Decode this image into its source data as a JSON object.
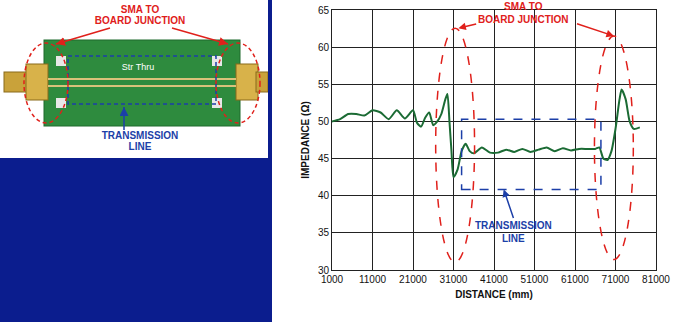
{
  "chart_data": {
    "type": "line",
    "x": [
      1000,
      3000,
      5000,
      7000,
      9000,
      11000,
      13000,
      15000,
      17000,
      19000,
      21000,
      22000,
      23000,
      24000,
      25000,
      26000,
      27000,
      28000,
      29000,
      29500,
      30000,
      30500,
      31000,
      32000,
      33000,
      34000,
      35000,
      36000,
      38000,
      40000,
      42000,
      44000,
      46000,
      48000,
      50000,
      52000,
      54000,
      56000,
      58000,
      60000,
      62000,
      64000,
      66000,
      67000,
      68000,
      69000,
      70000,
      71000,
      72000,
      72500,
      73500,
      74500,
      75500,
      77000
    ],
    "series": [
      {
        "color": "#1b6b34",
        "values": [
          50,
          50.3,
          51,
          51,
          50.8,
          51.5,
          51.2,
          50.3,
          51.5,
          50.4,
          51.5,
          49.8,
          49.3,
          50.5,
          51.2,
          49.5,
          50,
          51,
          53,
          53.7,
          50,
          46,
          42.5,
          43.5,
          46,
          47,
          46,
          45.7,
          46.5,
          45.8,
          45.8,
          46.2,
          45.9,
          46.3,
          45.9,
          46.2,
          46.5,
          46,
          46.4,
          46.1,
          46.3,
          46.3,
          46.3,
          46.5,
          45,
          44.8,
          46,
          49,
          53,
          54.3,
          53,
          50,
          49,
          49.2
        ]
      }
    ],
    "xlabel": "DISTANCE (mm)",
    "ylabel": "IMPEDANCE (Ω)",
    "xlim": [
      1000,
      81000
    ],
    "xticks": [
      1000,
      11000,
      21000,
      31000,
      41000,
      51000,
      61000,
      71000,
      81000
    ],
    "ylim": [
      30,
      65
    ],
    "yticks": [
      30,
      35,
      40,
      45,
      50,
      55,
      60,
      65
    ],
    "grid": true,
    "annotations": [
      "SMA TO\nBOARD JUNCTION",
      "TRANSMISSION\nLINE"
    ]
  },
  "photo": {
    "board_label": "Str Thru",
    "annotations": [
      "SMA TO\nBOARD JUNCTION",
      "TRANSMISSION\nLINE"
    ]
  }
}
